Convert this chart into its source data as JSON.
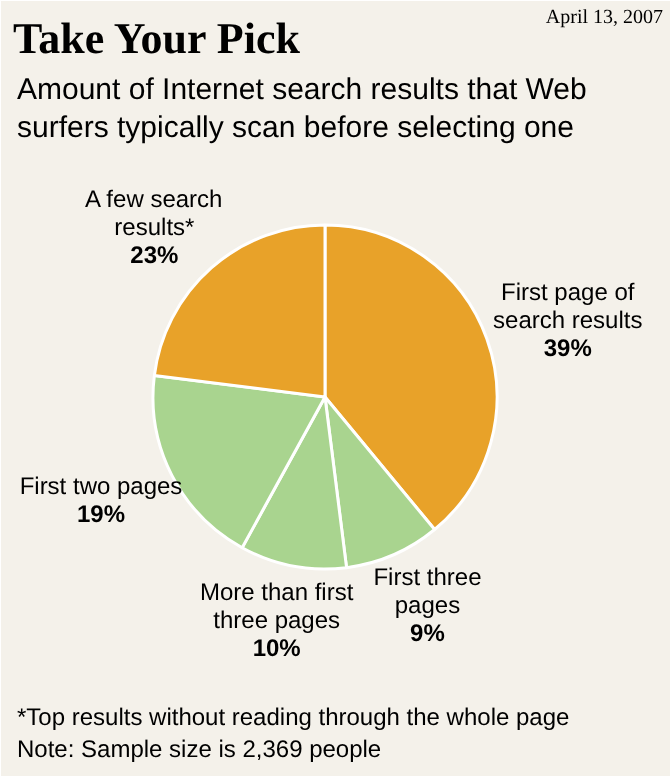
{
  "chart_data": {
    "type": "pie",
    "title": "Take Your Pick",
    "subtitle": "Amount of Internet search results that Web surfers typically scan before selecting one",
    "categories": [
      "First page of search results",
      "First three pages",
      "More than first three pages",
      "First two pages",
      "A few search results*"
    ],
    "values": [
      39,
      9,
      10,
      19,
      23
    ],
    "value_labels": [
      "39%",
      "9%",
      "10%",
      "19%",
      "23%"
    ],
    "colors": [
      "#e8a229",
      "#a9d48f",
      "#a9d48f",
      "#a9d48f",
      "#e8a229"
    ],
    "annotations": [
      "April 13, 2007",
      "*Top results without reading through the whole page",
      "Note: Sample size is 2,369 people"
    ]
  }
}
